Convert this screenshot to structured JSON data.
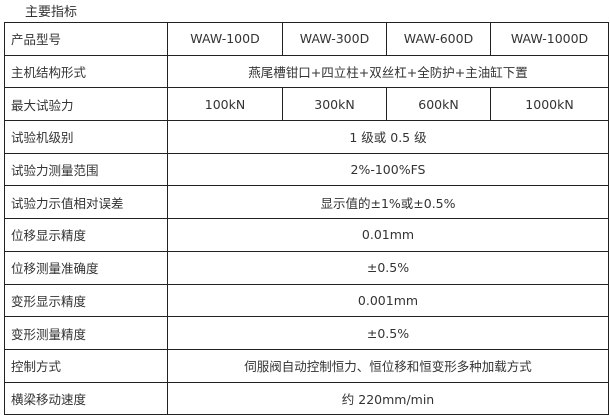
{
  "heading": "主要指标",
  "models_row": {
    "label": "产品型号",
    "values": [
      "WAW-100D",
      "WAW-300D",
      "WAW-600D",
      "WAW-1000D"
    ]
  },
  "structure_row": {
    "label": "主机结构形式",
    "value": "燕尾槽钳口+四立柱+双丝杠+全防护+主油缸下置"
  },
  "max_force_row": {
    "label": "最大试验力",
    "values": [
      "100kN",
      "300kN",
      "600kN",
      "1000kN"
    ]
  },
  "rows": [
    {
      "label": "试验机级别",
      "value": "1 级或 0.5 级"
    },
    {
      "label": "试验力测量范围",
      "value": "2%-100%FS"
    },
    {
      "label": "试验力示值相对误差",
      "value": "显示值的±1%或±0.5%"
    },
    {
      "label": "位移显示精度",
      "value": "0.01mm"
    },
    {
      "label": "位移测量准确度",
      "value": "±0.5%"
    },
    {
      "label": "变形显示精度",
      "value": "0.001mm"
    },
    {
      "label": "变形测量精度",
      "value": "±0.5%"
    },
    {
      "label": "控制方式",
      "value": "伺服阀自动控制恒力、恒位移和恒变形多种加载方式"
    },
    {
      "label": "横梁移动速度",
      "value": "约 220mm/min"
    }
  ]
}
